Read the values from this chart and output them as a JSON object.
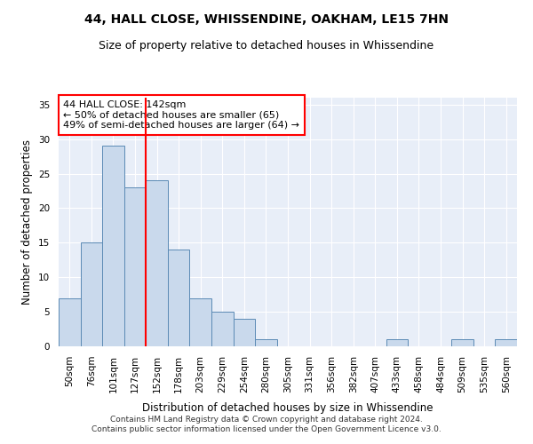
{
  "title": "44, HALL CLOSE, WHISSENDINE, OAKHAM, LE15 7HN",
  "subtitle": "Size of property relative to detached houses in Whissendine",
  "xlabel": "Distribution of detached houses by size in Whissendine",
  "ylabel": "Number of detached properties",
  "bar_labels": [
    "50sqm",
    "76sqm",
    "101sqm",
    "127sqm",
    "152sqm",
    "178sqm",
    "203sqm",
    "229sqm",
    "254sqm",
    "280sqm",
    "305sqm",
    "331sqm",
    "356sqm",
    "382sqm",
    "407sqm",
    "433sqm",
    "458sqm",
    "484sqm",
    "509sqm",
    "535sqm",
    "560sqm"
  ],
  "bar_values": [
    7,
    15,
    29,
    23,
    24,
    14,
    7,
    5,
    4,
    1,
    0,
    0,
    0,
    0,
    0,
    1,
    0,
    0,
    1,
    0,
    1
  ],
  "bar_color": "#c9d9ec",
  "bar_edge_color": "#5b8ab5",
  "vline_x": 3.5,
  "vline_color": "red",
  "annotation_text": "44 HALL CLOSE: 142sqm\n← 50% of detached houses are smaller (65)\n49% of semi-detached houses are larger (64) →",
  "annotation_box_color": "white",
  "annotation_box_edgecolor": "red",
  "ylim": [
    0,
    36
  ],
  "yticks": [
    0,
    5,
    10,
    15,
    20,
    25,
    30,
    35
  ],
  "background_color": "#e8eef8",
  "footer_text": "Contains HM Land Registry data © Crown copyright and database right 2024.\nContains public sector information licensed under the Open Government Licence v3.0.",
  "title_fontsize": 10,
  "subtitle_fontsize": 9,
  "axis_label_fontsize": 8.5,
  "tick_fontsize": 7.5,
  "annotation_fontsize": 8,
  "footer_fontsize": 6.5
}
